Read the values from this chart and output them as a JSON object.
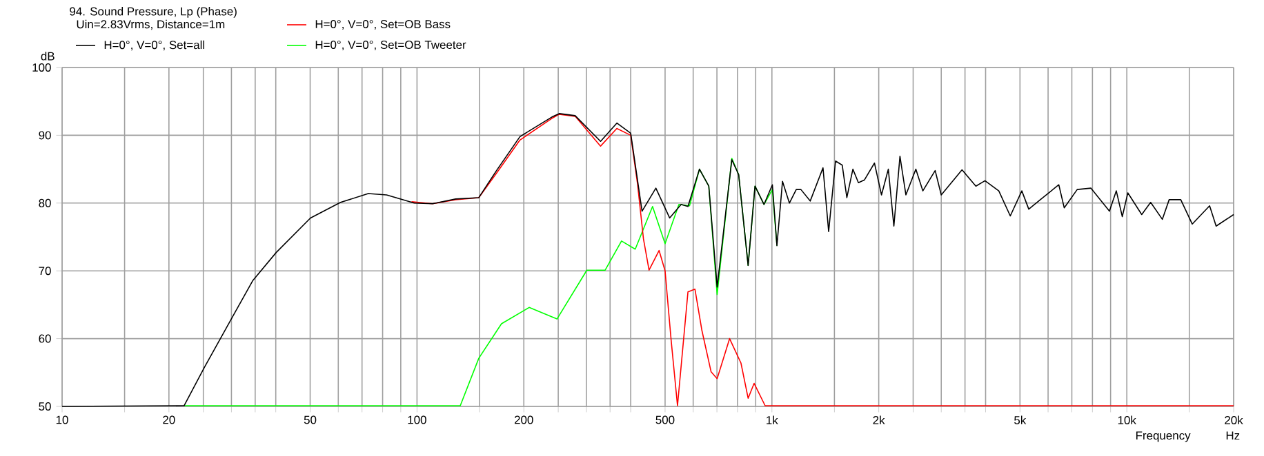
{
  "chart_data": {
    "type": "line",
    "title": "94. Sound Pressure, Lp (Phase)",
    "xlabel": "Frequency",
    "ylabel": "dB",
    "annotations": [
      "Uin=2.83Vrms, Distance=1m",
      "Hz"
    ],
    "log": "x",
    "grid": true,
    "legend": "top",
    "xlim": [
      10,
      20000
    ],
    "ylim": [
      50,
      100
    ],
    "xticks": [
      10,
      {
        "value": 15,
        "label": null
      },
      20,
      {
        "value": 25,
        "label": null
      },
      {
        "value": 30,
        "label": null
      },
      {
        "value": 35,
        "label": null
      },
      {
        "value": 40,
        "label": null
      },
      50,
      {
        "value": 60,
        "label": null
      },
      {
        "value": 70,
        "label": null
      },
      {
        "value": 80,
        "label": null
      },
      {
        "value": 90,
        "label": null
      },
      100,
      {
        "value": 150,
        "label": null
      },
      200,
      {
        "value": 250,
        "label": null
      },
      {
        "value": 300,
        "label": null
      },
      {
        "value": 350,
        "label": null
      },
      {
        "value": 400,
        "label": null
      },
      500,
      {
        "value": 600,
        "label": null
      },
      {
        "value": 700,
        "label": null
      },
      {
        "value": 800,
        "label": null
      },
      {
        "value": 900,
        "label": null
      },
      {
        "value": 1000,
        "label": "1k"
      },
      {
        "value": 1500,
        "label": null
      },
      {
        "value": 2000,
        "label": "2k"
      },
      {
        "value": 2500,
        "label": null
      },
      {
        "value": 3000,
        "label": null
      },
      {
        "value": 3500,
        "label": null
      },
      {
        "value": 4000,
        "label": null
      },
      {
        "value": 5000,
        "label": "5k"
      },
      {
        "value": 6000,
        "label": null
      },
      {
        "value": 7000,
        "label": null
      },
      {
        "value": 8000,
        "label": null
      },
      {
        "value": 9000,
        "label": null
      },
      {
        "value": 10000,
        "label": "10k"
      },
      {
        "value": 15000,
        "label": null
      },
      {
        "value": 20000,
        "label": "20k"
      }
    ],
    "yticks": [
      50,
      60,
      70,
      80,
      90,
      100
    ],
    "series": [
      {
        "name": "H=0°, V=0°, Set=all",
        "color": "#000000",
        "x": [
          10,
          22.06,
          25.2,
          30.2,
          34.5,
          40.1,
          50.1,
          60.9,
          72.9,
          82.1,
          98.2,
          110.6,
          128.5,
          149.3,
          168,
          195,
          240,
          251.6,
          279,
          329,
          365.7,
          400,
          430.6,
          471,
          515,
          555,
          580,
          625,
          664,
          701,
          771,
          806,
          857,
          896,
          950,
          1003,
          1033,
          1071,
          1120,
          1171,
          1207,
          1282,
          1393,
          1445,
          1511,
          1578,
          1626,
          1691,
          1753,
          1822,
          1945,
          2036,
          2128,
          2206,
          2295,
          2385,
          2544,
          2662,
          2884,
          3000,
          3433,
          3756,
          3985,
          4358,
          4695,
          5060,
          5293,
          5705,
          6432,
          6662,
          7248,
          7925,
          8933,
          9340,
          9710,
          10066,
          11015,
          11670,
          12590,
          13160,
          14190,
          15290,
          17110,
          17850,
          20000
        ],
        "values": [
          50,
          50.1,
          55.8,
          63.2,
          68.6,
          72.7,
          77.8,
          80.1,
          81.4,
          81.2,
          80.0,
          79.9,
          80.6,
          80.8,
          84.9,
          89.8,
          92.7,
          93.2,
          92.9,
          89.1,
          91.8,
          90.3,
          78.8,
          82.2,
          77.8,
          79.8,
          79.5,
          85.0,
          82.5,
          67.6,
          86.4,
          84.2,
          70.8,
          82.5,
          79.8,
          82.7,
          73.7,
          83.2,
          80.0,
          82.0,
          82.0,
          80.3,
          85.2,
          75.8,
          86.2,
          85.6,
          80.8,
          85.0,
          83.0,
          83.4,
          85.9,
          81.2,
          85.0,
          76.6,
          86.9,
          81.2,
          85.0,
          81.8,
          84.8,
          81.2,
          84.9,
          82.5,
          83.3,
          81.8,
          78.1,
          81.8,
          79.1,
          80.5,
          82.7,
          79.3,
          82.0,
          82.2,
          78.8,
          81.8,
          78.0,
          81.5,
          78.3,
          80.1,
          77.6,
          80.5,
          80.5,
          76.9,
          79.6,
          76.6,
          78.3
        ]
      },
      {
        "name": "H=0°, V=0°, Set=OB Bass",
        "color": "#ff0000",
        "x": [
          96.5,
          110.6,
          128.5,
          149.3,
          168,
          195,
          240,
          251.6,
          279,
          329,
          365.7,
          400,
          418,
          434.6,
          450.6,
          481,
          500,
          520,
          542,
          580,
          607,
          635,
          674,
          701,
          760,
          818,
          857,
          891,
          957,
          20000
        ],
        "values": [
          80.2,
          79.9,
          80.5,
          80.8,
          84.5,
          89.3,
          92.5,
          93.1,
          92.8,
          88.4,
          91.0,
          90.0,
          82.9,
          74.7,
          70.1,
          73.0,
          70.0,
          59.8,
          50.1,
          66.9,
          67.3,
          61.2,
          55.1,
          54.1,
          60.0,
          56.4,
          51.2,
          53.4,
          50.1,
          50.1
        ]
      },
      {
        "name": "H=0°, V=0°, Set=OB Tweeter",
        "color": "#00ff00",
        "x": [
          22.06,
          132.4,
          149.3,
          173,
          207,
          240,
          248,
          301,
          339,
          377,
          412,
          461,
          500,
          547,
          586,
          625,
          664,
          701,
          771,
          806,
          857,
          896,
          950,
          1003,
          1033
        ],
        "values": [
          50.1,
          50.1,
          57.1,
          62.2,
          64.6,
          63.2,
          62.9,
          70.1,
          70.1,
          74.4,
          73.2,
          79.5,
          74.0,
          79.8,
          79.6,
          85.0,
          82.5,
          66.5,
          86.6,
          84.2,
          70.8,
          82.5,
          79.8,
          82.0,
          73.7
        ]
      }
    ]
  }
}
